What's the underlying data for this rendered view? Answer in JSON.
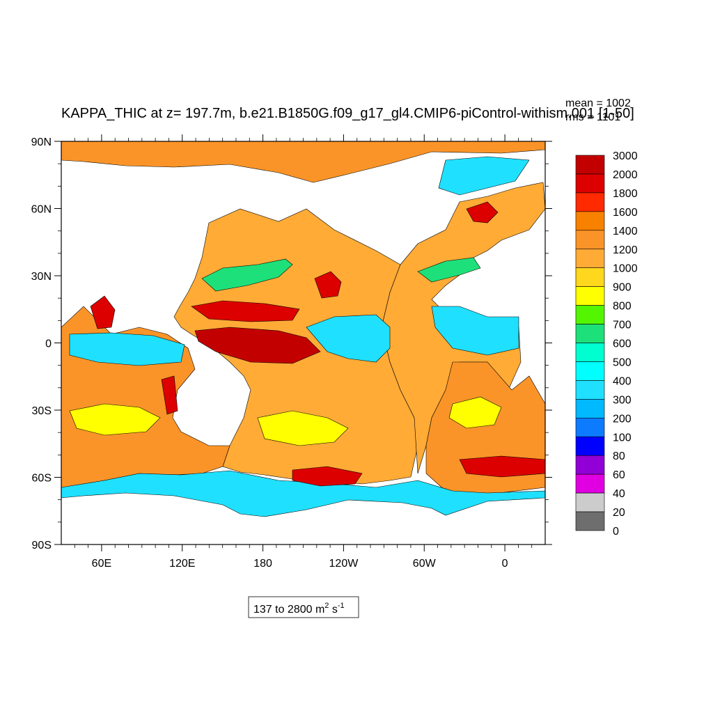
{
  "plot": {
    "title": "KAPPA_THIC at z= 197.7m, b.e21.B1850G.f09_g17_gl4.CMIP6-piControl-withism.001 [1-50]",
    "stats": {
      "mean": "mean = 1002",
      "rms": "rms = 1101"
    },
    "range_label": "137 to 2800 m",
    "range_unit_sup1": "2",
    "range_unit_mid": " s",
    "range_unit_sup2": "-1"
  },
  "map": {
    "lon_range": [
      30,
      390
    ],
    "lat_range": [
      -90,
      90
    ],
    "y_ticks": [
      "90N",
      "60N",
      "30N",
      "0",
      "30S",
      "60S",
      "90S"
    ],
    "x_ticks": [
      "60E",
      "120E",
      "180",
      "120W",
      "60W",
      "0"
    ],
    "land_color": "#ffffff",
    "ocean_colors": [
      "#6e6e6e",
      "#cccccc",
      "#e100e1",
      "#9100d6",
      "#0000ff",
      "#0d7bff",
      "#00b9ff",
      "#20e0ff",
      "#00ffff",
      "#00ffd0",
      "#1ee07a",
      "#53f500",
      "#ffff00",
      "#ffd71c",
      "#ffab36",
      "#fb9428",
      "#f88100",
      "#ff2a00",
      "#dc0000",
      "#c30000"
    ]
  },
  "colorbar": {
    "labels": [
      "3000",
      "2000",
      "1800",
      "1600",
      "1400",
      "1200",
      "1000",
      "900",
      "800",
      "700",
      "600",
      "500",
      "400",
      "300",
      "200",
      "100",
      "80",
      "60",
      "40",
      "20",
      "0"
    ],
    "colors": [
      "#c30000",
      "#dc0000",
      "#ff2a00",
      "#f88100",
      "#fb9428",
      "#ffab36",
      "#ffd71c",
      "#ffff00",
      "#53f500",
      "#1ee07a",
      "#00ffd0",
      "#00ffff",
      "#20e0ff",
      "#00b9ff",
      "#0d7bff",
      "#0000ff",
      "#9100d6",
      "#e100e1",
      "#cccccc",
      "#6e6e6e"
    ]
  }
}
